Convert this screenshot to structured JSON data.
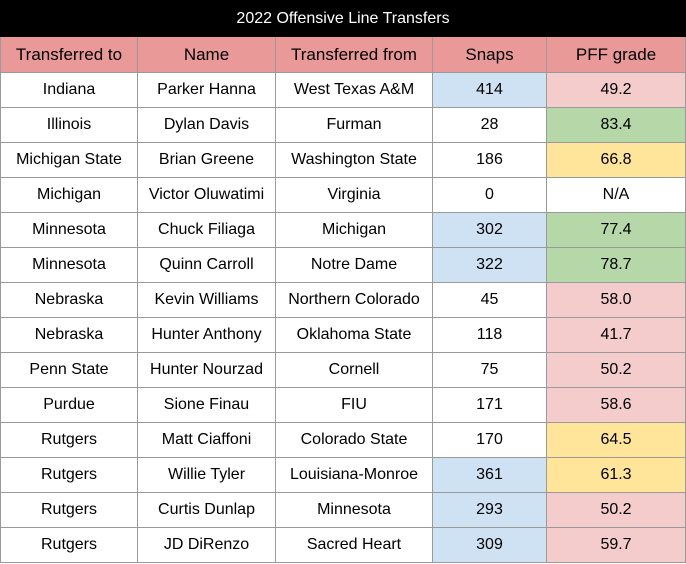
{
  "title": "2022 Offensive Line Transfers",
  "table": {
    "header": [
      "Transferred to",
      "Name",
      "Transferred from",
      "Snaps",
      "PFF grade"
    ],
    "rows": [
      [
        "Indiana",
        "Parker Hanna",
        "West Texas A&M",
        "414",
        "49.2"
      ],
      [
        "Illinois",
        "Dylan Davis",
        "Furman",
        "28",
        "83.4"
      ],
      [
        "Michigan State",
        "Brian Greene",
        "Washington State",
        "186",
        "66.8"
      ],
      [
        "Michigan",
        "Victor Oluwatimi",
        "Virginia",
        "0",
        "N/A"
      ],
      [
        "Minnesota",
        "Chuck Filiaga",
        "Michigan",
        "302",
        "77.4"
      ],
      [
        "Minnesota",
        "Quinn Carroll",
        "Notre Dame",
        "322",
        "78.7"
      ],
      [
        "Nebraska",
        "Kevin Williams",
        "Northern Colorado",
        "45",
        "58.0"
      ],
      [
        "Nebraska",
        "Hunter Anthony",
        "Oklahoma State",
        "118",
        "41.7"
      ],
      [
        "Penn State",
        "Hunter Nourzad",
        "Cornell",
        "75",
        "50.2"
      ],
      [
        "Purdue",
        "Sione Finau",
        "FIU",
        "171",
        "58.6"
      ],
      [
        "Rutgers",
        "Matt Ciaffoni",
        "Colorado State",
        "170",
        "64.5"
      ],
      [
        "Rutgers",
        "Willie Tyler",
        "Louisiana-Monroe",
        "361",
        "61.3"
      ],
      [
        "Rutgers",
        "Curtis Dunlap",
        "Minnesota",
        "293",
        "50.2"
      ],
      [
        "Rutgers",
        "JD DiRenzo",
        "Sacred Heart",
        "309",
        "59.7"
      ]
    ],
    "cell_fills": [
      [
        "#cfe2f3",
        "#f4cccc"
      ],
      [
        null,
        "#b6d7a8"
      ],
      [
        null,
        "#ffe599"
      ],
      [
        null,
        null
      ],
      [
        "#cfe2f3",
        "#b6d7a8"
      ],
      [
        "#cfe2f3",
        "#b6d7a8"
      ],
      [
        null,
        "#f4cccc"
      ],
      [
        null,
        "#f4cccc"
      ],
      [
        null,
        "#f4cccc"
      ],
      [
        null,
        "#f4cccc"
      ],
      [
        null,
        "#ffe599"
      ],
      [
        "#cfe2f3",
        "#ffe599"
      ],
      [
        "#cfe2f3",
        "#f4cccc"
      ],
      [
        "#cfe2f3",
        "#f4cccc"
      ]
    ]
  }
}
